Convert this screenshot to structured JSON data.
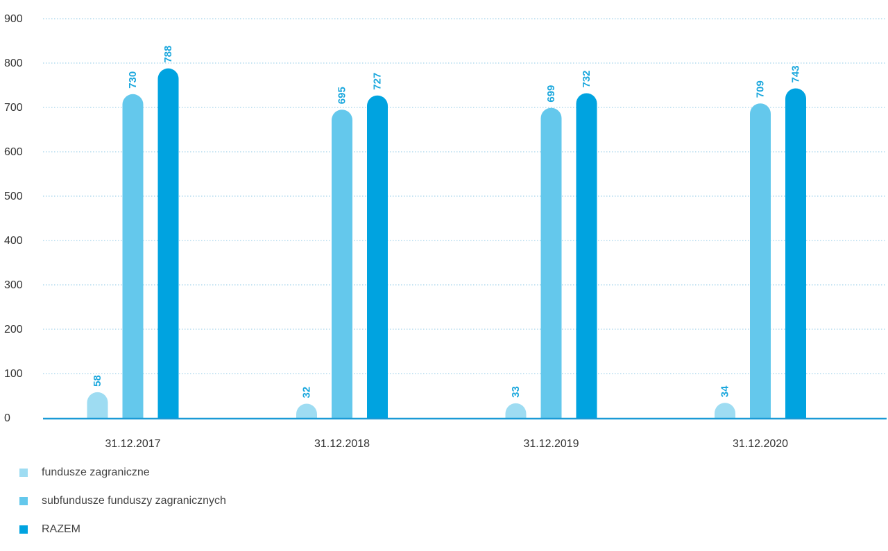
{
  "colors": {
    "series_0": "#9edcf2",
    "series_1": "#64c8ec",
    "series_2": "#00a3e0",
    "value_label": "#1aa7dd",
    "grid": "#8cc8e6",
    "axis_line": "#1a9ad6",
    "tick_text": "#333333"
  },
  "chart_data": {
    "type": "bar",
    "categories": [
      "31.12.2017",
      "31.12.2018",
      "31.12.2019",
      "31.12.2020"
    ],
    "series": [
      {
        "name": "fundusze zagraniczne",
        "values": [
          58,
          32,
          33,
          34
        ]
      },
      {
        "name": "subfundusze funduszy zagranicznych",
        "values": [
          730,
          695,
          699,
          709
        ]
      },
      {
        "name": "RAZEM",
        "values": [
          788,
          727,
          732,
          743
        ]
      }
    ],
    "yticks": [
      "0",
      "100",
      "200",
      "300",
      "400",
      "500",
      "600",
      "700",
      "800",
      "900"
    ],
    "ylim": [
      0,
      900
    ],
    "grid": true,
    "legend_position": "bottom-left",
    "bar_style": "rounded-top",
    "value_labels": "rotated-vertical-above-bars"
  }
}
